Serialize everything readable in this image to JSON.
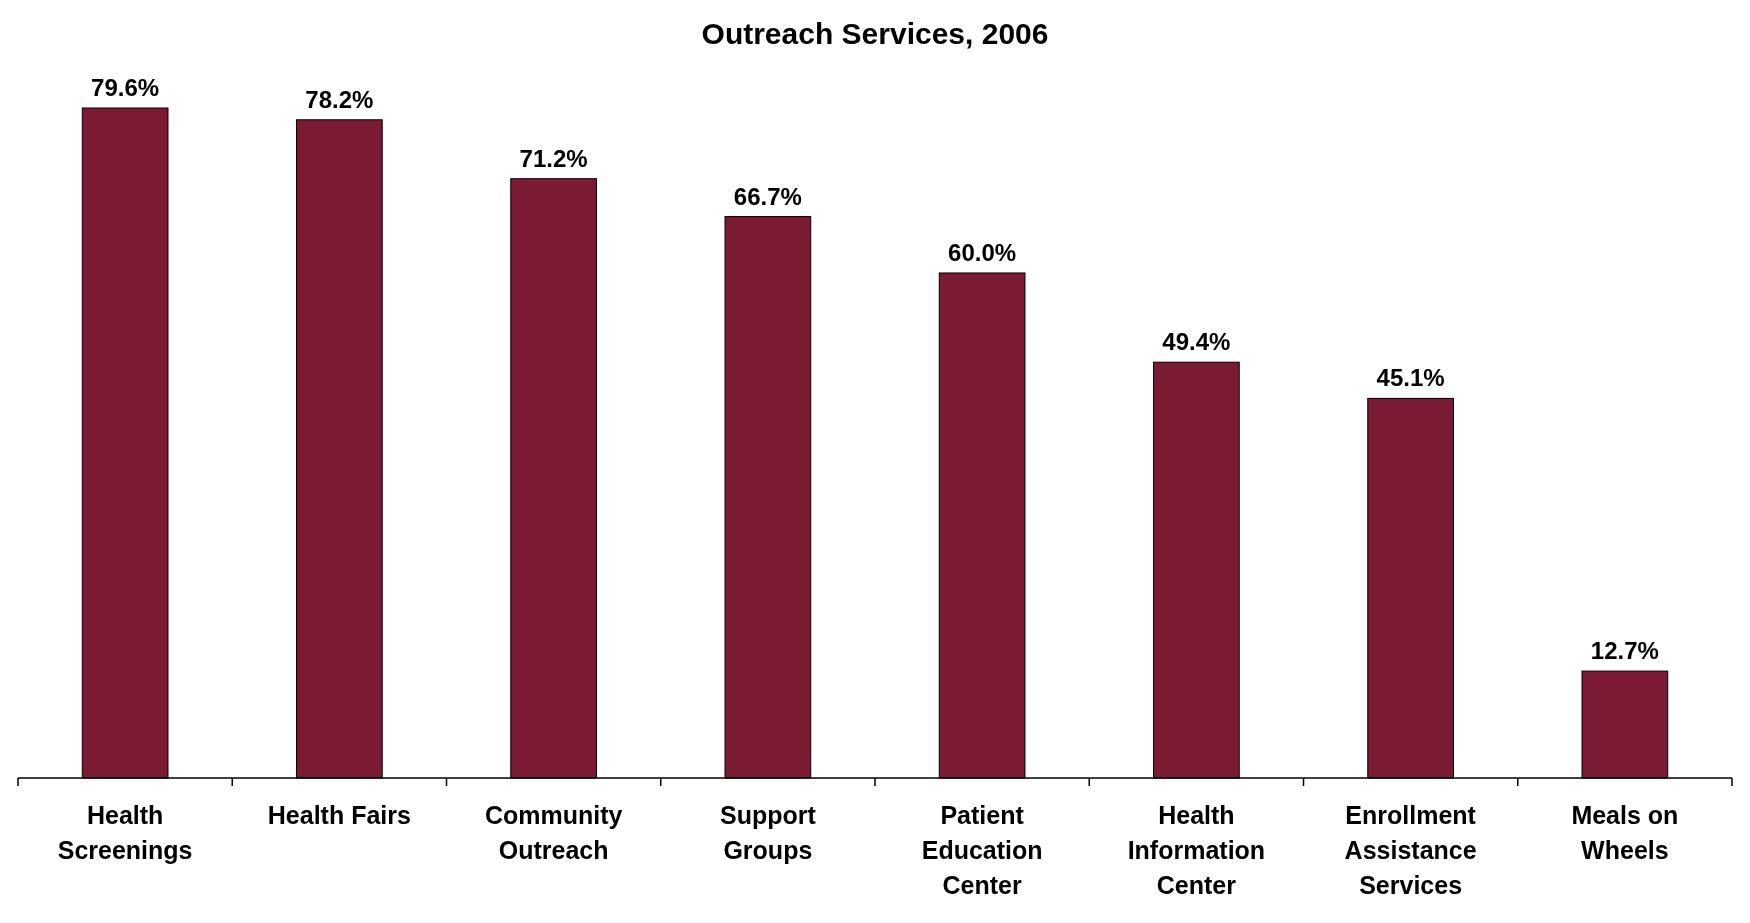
{
  "chart_data": {
    "type": "bar",
    "title": "Outreach Services, 2006",
    "categories": [
      "Health Screenings",
      "Health Fairs",
      "Community Outreach",
      "Support Groups",
      "Patient Education Center",
      "Health Information Center",
      "Enrollment Assistance Services",
      "Meals on Wheels"
    ],
    "values": [
      79.6,
      78.2,
      71.2,
      66.7,
      60.0,
      49.4,
      45.1,
      12.7
    ],
    "value_labels": [
      "79.6%",
      "78.2%",
      "71.2%",
      "66.7%",
      "60.0%",
      "49.4%",
      "45.1%",
      "12.7%"
    ],
    "color": "#7a1a33"
  }
}
